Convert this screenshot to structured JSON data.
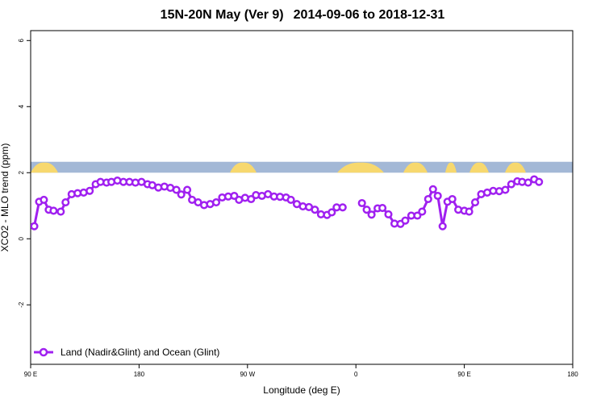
{
  "chart_title_part1": "15N-20N May (Ver 9)",
  "chart_title_part2": "2014-09-06 to 2018-12-31",
  "chart_data": {
    "type": "line",
    "title": "15N-20N May (Ver 9)   2014-09-06 to 2018-12-31",
    "xlabel": "Longitude (deg E)",
    "ylabel": "XCO2 - MLO trend (ppm)",
    "x_tick_labels": [
      "90 E",
      "180",
      "90 W",
      "0",
      "90 E",
      "180"
    ],
    "x_tick_values": [
      90,
      180,
      270,
      360,
      450,
      540
    ],
    "xlim": [
      90,
      540
    ],
    "y_tick_labels": [
      "-2",
      "0",
      "2",
      "4",
      "6"
    ],
    "y_tick_values": [
      -2,
      0,
      2,
      4,
      6
    ],
    "ylim": [
      -3.8,
      6.3
    ],
    "grid": false,
    "legend_position": "bottom-left",
    "map_strip": {
      "y_range": [
        2.0,
        2.33
      ],
      "ocean_color": "#a3b8d6",
      "land_color": "#f7d86e"
    },
    "series": [
      {
        "name": "Land (Nadir&Glint) and Ocean (Glint)",
        "color": "#a020f0",
        "segments": [
          [
            [
              93,
              0.38
            ],
            [
              97,
              1.12
            ],
            [
              101,
              1.18
            ],
            [
              105,
              0.88
            ],
            [
              109,
              0.85
            ],
            [
              115,
              0.82
            ],
            [
              119,
              1.1
            ],
            [
              124,
              1.35
            ],
            [
              129,
              1.38
            ],
            [
              134,
              1.4
            ],
            [
              139,
              1.45
            ],
            [
              144,
              1.65
            ],
            [
              148,
              1.72
            ],
            [
              153,
              1.7
            ],
            [
              157,
              1.72
            ],
            [
              162,
              1.76
            ],
            [
              167,
              1.72
            ],
            [
              172,
              1.72
            ],
            [
              177,
              1.7
            ],
            [
              182,
              1.72
            ],
            [
              187,
              1.65
            ],
            [
              191,
              1.62
            ],
            [
              196,
              1.55
            ],
            [
              201,
              1.58
            ],
            [
              206,
              1.54
            ],
            [
              211,
              1.48
            ],
            [
              215,
              1.34
            ],
            [
              220,
              1.48
            ],
            [
              224,
              1.18
            ],
            [
              229,
              1.1
            ],
            [
              234,
              1.02
            ],
            [
              239,
              1.05
            ],
            [
              244,
              1.1
            ],
            [
              249,
              1.25
            ],
            [
              254,
              1.28
            ],
            [
              259,
              1.3
            ],
            [
              263,
              1.18
            ],
            [
              268,
              1.24
            ],
            [
              273,
              1.2
            ],
            [
              277,
              1.32
            ],
            [
              282,
              1.3
            ],
            [
              287,
              1.35
            ],
            [
              292,
              1.28
            ],
            [
              297,
              1.27
            ],
            [
              302,
              1.25
            ],
            [
              306,
              1.18
            ],
            [
              311,
              1.05
            ],
            [
              316,
              0.98
            ],
            [
              321,
              0.96
            ],
            [
              326,
              0.88
            ],
            [
              331,
              0.74
            ],
            [
              336,
              0.72
            ],
            [
              340,
              0.8
            ],
            [
              344,
              0.95
            ],
            [
              349,
              0.95
            ]
          ],
          [
            [
              365,
              1.08
            ],
            [
              369,
              0.88
            ],
            [
              373,
              0.73
            ],
            [
              378,
              0.92
            ],
            [
              382,
              0.93
            ],
            [
              387,
              0.74
            ],
            [
              392,
              0.46
            ],
            [
              397,
              0.45
            ],
            [
              401,
              0.55
            ],
            [
              406,
              0.7
            ],
            [
              411,
              0.7
            ],
            [
              415,
              0.82
            ],
            [
              420,
              1.2
            ],
            [
              424,
              1.5
            ],
            [
              428,
              1.3
            ],
            [
              432,
              0.38
            ],
            [
              436,
              1.12
            ],
            [
              440,
              1.2
            ],
            [
              445,
              0.88
            ],
            [
              450,
              0.85
            ],
            [
              454,
              0.82
            ],
            [
              459,
              1.1
            ],
            [
              464,
              1.35
            ],
            [
              469,
              1.4
            ],
            [
              474,
              1.45
            ],
            [
              479,
              1.44
            ],
            [
              484,
              1.48
            ],
            [
              489,
              1.65
            ],
            [
              494,
              1.74
            ],
            [
              498,
              1.72
            ],
            [
              503,
              1.7
            ],
            [
              508,
              1.8
            ],
            [
              512,
              1.72
            ]
          ]
        ]
      }
    ]
  }
}
